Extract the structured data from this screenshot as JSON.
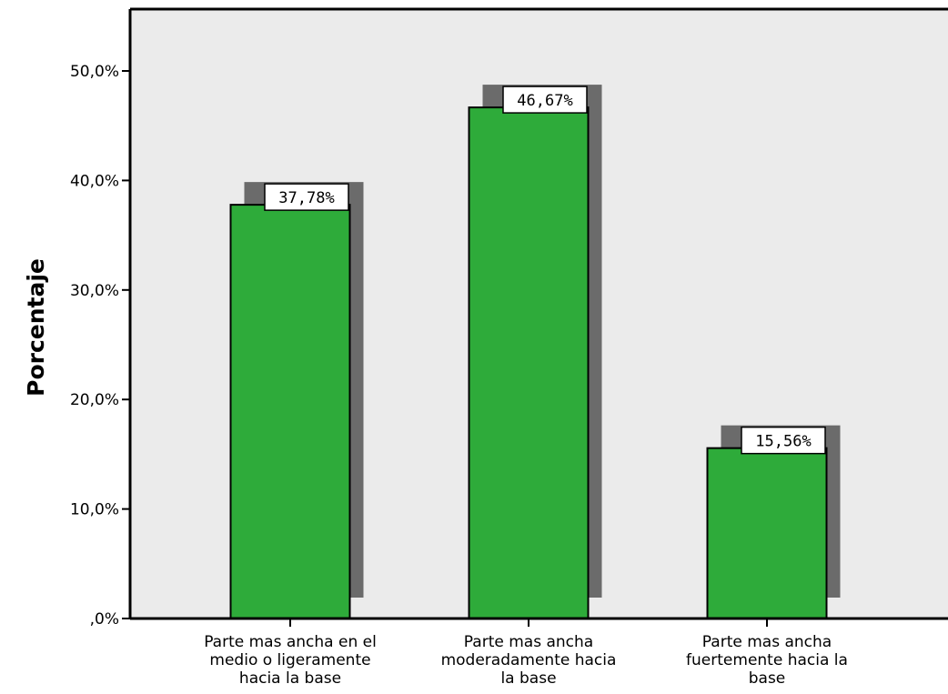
{
  "chart_data": {
    "type": "bar",
    "ylabel": "Porcentaje",
    "xlabel": "",
    "ylim": [
      0,
      55
    ],
    "yticks": [
      0,
      10,
      20,
      30,
      40,
      50
    ],
    "ytick_labels": [
      ",0%",
      "10,0%",
      "20,0%",
      "30,0%",
      "40,0%",
      "50,0%"
    ],
    "categories": [
      [
        "Parte mas ancha en el",
        "medio o ligeramente",
        "hacia la base"
      ],
      [
        "Parte mas ancha",
        "moderadamente hacia",
        "la base"
      ],
      [
        "Parte mas ancha",
        "fuertemente hacia la",
        "base"
      ]
    ],
    "values": [
      37.78,
      46.67,
      15.56
    ],
    "data_labels": [
      "37,78%",
      "46,67%",
      "15,56%"
    ],
    "grid": false,
    "colors": {
      "bar": "#2eab3a",
      "shadow": "#6b6b6b",
      "plot_bg": "#ebebeb",
      "axis": "#000000"
    }
  }
}
